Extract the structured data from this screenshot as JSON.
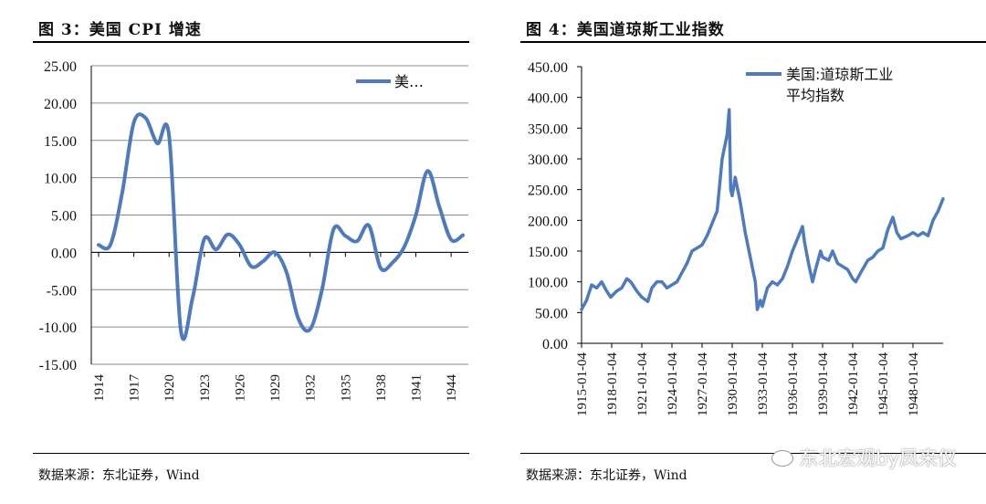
{
  "left_panel": {
    "title": "图 3：美国 CPI 增速",
    "source": "数据来源：东北证券，Wind"
  },
  "right_panel": {
    "title": "图 4：美国道琼斯工业指数",
    "source": "数据来源：东北证券，Wind"
  },
  "watermark": "东北宏观by凤来仪",
  "colors": {
    "line": "#4F7BBE",
    "grid": "#8c8c8c",
    "axis": "#000000"
  },
  "chart_data": [
    {
      "type": "line",
      "legend_label": "美…",
      "legend_position": "top-right",
      "grid": true,
      "ylim": [
        -15,
        25
      ],
      "yticks": [
        "25.00",
        "20.00",
        "15.00",
        "10.00",
        "5.00",
        "0.00",
        "-5.00",
        "-10.00",
        "-15.00"
      ],
      "ytick_values": [
        25,
        20,
        15,
        10,
        5,
        0,
        -5,
        -10,
        -15
      ],
      "xtick_labels": [
        "1914",
        "1917",
        "1920",
        "1923",
        "1926",
        "1929",
        "1932",
        "1935",
        "1938",
        "1941",
        "1944"
      ],
      "x": [
        1914,
        1915,
        1916,
        1917,
        1918,
        1919,
        1920,
        1921,
        1922,
        1923,
        1924,
        1925,
        1926,
        1927,
        1928,
        1929,
        1930,
        1931,
        1932,
        1933,
        1934,
        1935,
        1936,
        1937,
        1938,
        1939,
        1940,
        1941,
        1942,
        1943,
        1944,
        1945
      ],
      "series": [
        {
          "values": [
            1.0,
            1.0,
            7.9,
            17.4,
            18.0,
            14.6,
            15.6,
            -10.5,
            -6.1,
            1.8,
            0.4,
            2.4,
            1.0,
            -1.9,
            -1.2,
            0.0,
            -2.7,
            -8.9,
            -10.3,
            -5.1,
            3.1,
            2.2,
            1.5,
            3.6,
            -2.1,
            -1.4,
            0.7,
            5.0,
            10.9,
            6.1,
            1.7,
            2.3
          ]
        }
      ]
    },
    {
      "type": "line",
      "legend_label": "美国:道琼斯工业平均指数",
      "legend_lines": [
        "美国:道琼斯工业",
        "平均指数"
      ],
      "legend_position": "top-right",
      "grid": false,
      "ylim": [
        0,
        450
      ],
      "yticks": [
        "450.00",
        "400.00",
        "350.00",
        "300.00",
        "250.00",
        "200.00",
        "150.00",
        "100.00",
        "50.00",
        "0.00"
      ],
      "ytick_values": [
        450,
        400,
        350,
        300,
        250,
        200,
        150,
        100,
        50,
        0
      ],
      "xtick_labels": [
        "1915-01-04",
        "1918-01-04",
        "1921-01-04",
        "1924-01-04",
        "1927-01-04",
        "1930-01-04",
        "1933-01-04",
        "1936-01-04",
        "1939-01-04",
        "1942-01-04",
        "1945-01-04",
        "1948-01-04"
      ],
      "xlim": [
        1915.0,
        1951.0
      ],
      "x": [
        1915.0,
        1915.5,
        1916.0,
        1916.5,
        1917.0,
        1917.5,
        1917.9,
        1918.5,
        1919.0,
        1919.5,
        1919.9,
        1920.5,
        1921.0,
        1921.6,
        1922.0,
        1922.5,
        1923.0,
        1923.5,
        1924.0,
        1924.5,
        1925.0,
        1925.5,
        1926.0,
        1926.5,
        1927.0,
        1927.5,
        1928.0,
        1928.5,
        1929.0,
        1929.5,
        1929.7,
        1929.85,
        1930.0,
        1930.3,
        1930.8,
        1931.3,
        1931.8,
        1932.3,
        1932.5,
        1932.8,
        1933.0,
        1933.5,
        1934.0,
        1934.5,
        1935.0,
        1935.5,
        1936.0,
        1936.5,
        1937.0,
        1937.2,
        1937.6,
        1938.0,
        1938.3,
        1938.8,
        1939.0,
        1939.6,
        1940.0,
        1940.5,
        1941.0,
        1941.5,
        1942.0,
        1942.3,
        1942.8,
        1943.5,
        1944.0,
        1944.5,
        1945.0,
        1945.5,
        1946.0,
        1946.4,
        1946.8,
        1947.5,
        1948.0,
        1948.5,
        1949.0,
        1949.5,
        1950.0,
        1950.5,
        1951.0
      ],
      "series": [
        {
          "values": [
            55,
            70,
            95,
            90,
            100,
            85,
            75,
            85,
            90,
            105,
            100,
            85,
            75,
            68,
            90,
            100,
            100,
            90,
            95,
            100,
            115,
            130,
            150,
            155,
            160,
            175,
            195,
            215,
            300,
            340,
            380,
            250,
            240,
            270,
            230,
            180,
            140,
            100,
            55,
            70,
            60,
            90,
            100,
            95,
            105,
            125,
            150,
            170,
            190,
            165,
            130,
            100,
            120,
            150,
            140,
            135,
            150,
            130,
            125,
            120,
            105,
            100,
            115,
            135,
            140,
            150,
            155,
            185,
            205,
            180,
            170,
            175,
            180,
            175,
            180,
            175,
            200,
            215,
            235
          ]
        }
      ]
    }
  ]
}
